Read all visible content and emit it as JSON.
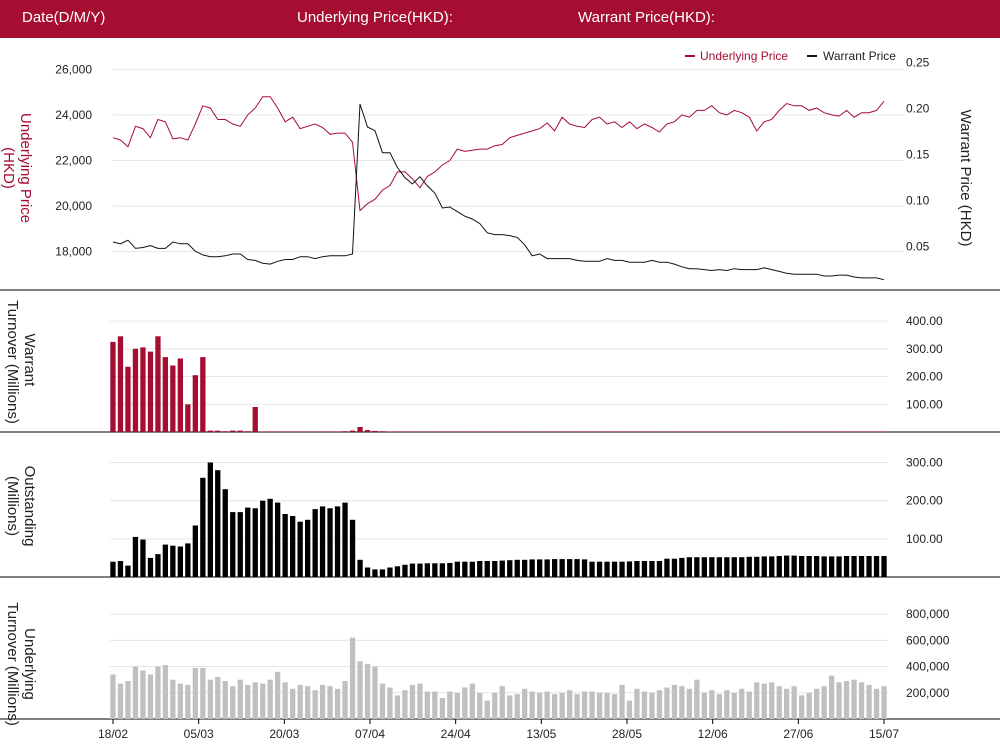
{
  "header": {
    "date_label": "Date(D/M/Y)",
    "underlying_label": "Underlying Price(HKD):",
    "warrant_label": "Warrant Price(HKD):"
  },
  "colors": {
    "brand": "#a50e31",
    "underlying": "#a50e31",
    "warrant": "#111111",
    "turnover_bar": "#a50e31",
    "outstanding_bar": "#000000",
    "underlying_turnover_bar": "#c0c0c0",
    "grid": "#e6e6e6"
  },
  "chart_data": [
    {
      "type": "line",
      "legend": {
        "placement": "top-right",
        "items": [
          "Underlying Price",
          "Warrant Price"
        ]
      },
      "ylabel_left": "Underlying Price (HKD)",
      "ylabel_right": "Warrant  Price (HKD)",
      "left_ticks": [
        "26,000",
        "24,000",
        "22,000",
        "20,000",
        "18,000"
      ],
      "right_ticks": [
        "0.25",
        "0.20",
        "0.15",
        "0.10",
        "0.05"
      ],
      "ylim_left": [
        16400,
        26500
      ],
      "ylim_right": [
        0.005,
        0.255
      ],
      "grid": true,
      "series": [
        {
          "name": "Underlying Price",
          "axis": "left",
          "values": [
            23000,
            22900,
            22600,
            23500,
            23400,
            23000,
            23800,
            23700,
            22950,
            23000,
            22900,
            23600,
            24400,
            24300,
            23800,
            23800,
            23600,
            23500,
            24000,
            24300,
            24800,
            24800,
            24300,
            23700,
            23900,
            23400,
            23500,
            23600,
            23450,
            23150,
            23200,
            23200,
            22800,
            19800,
            20100,
            20300,
            20700,
            20900,
            21500,
            21500,
            21200,
            20800,
            21300,
            21500,
            21800,
            22000,
            22500,
            22400,
            22450,
            22500,
            22500,
            22650,
            22700,
            23000,
            23100,
            23200,
            23300,
            23400,
            23650,
            23300,
            23900,
            23600,
            23500,
            23450,
            23800,
            23900,
            23600,
            23700,
            23450,
            23700,
            23400,
            23600,
            23450,
            23250,
            23600,
            23700,
            24000,
            23900,
            24200,
            24200,
            24400,
            24100,
            24000,
            24200,
            24100,
            23900,
            23300,
            23700,
            23800,
            24200,
            24500,
            24400,
            24400,
            24200,
            24300,
            24100,
            24000,
            23950,
            24200,
            23900,
            24100,
            24100,
            24200,
            24600
          ]
        },
        {
          "name": "Warrant Price",
          "axis": "right",
          "values": [
            0.055,
            0.053,
            0.057,
            0.048,
            0.049,
            0.051,
            0.048,
            0.048,
            0.055,
            0.053,
            0.053,
            0.045,
            0.041,
            0.039,
            0.039,
            0.04,
            0.042,
            0.042,
            0.036,
            0.035,
            0.032,
            0.031,
            0.034,
            0.036,
            0.036,
            0.039,
            0.039,
            0.037,
            0.039,
            0.04,
            0.04,
            0.04,
            0.042,
            0.205,
            0.18,
            0.176,
            0.152,
            0.152,
            0.136,
            0.125,
            0.118,
            0.126,
            0.116,
            0.108,
            0.092,
            0.093,
            0.088,
            0.083,
            0.08,
            0.075,
            0.065,
            0.063,
            0.063,
            0.062,
            0.06,
            0.052,
            0.04,
            0.042,
            0.037,
            0.037,
            0.037,
            0.037,
            0.035,
            0.034,
            0.034,
            0.034,
            0.037,
            0.035,
            0.035,
            0.033,
            0.033,
            0.033,
            0.035,
            0.033,
            0.033,
            0.031,
            0.028,
            0.026,
            0.026,
            0.025,
            0.024,
            0.025,
            0.024,
            0.026,
            0.025,
            0.025,
            0.025,
            0.027,
            0.025,
            0.023,
            0.021,
            0.02,
            0.02,
            0.02,
            0.02,
            0.018,
            0.018,
            0.019,
            0.019,
            0.017,
            0.016,
            0.016,
            0.016,
            0.014
          ]
        }
      ]
    },
    {
      "type": "bar",
      "ylabel": "Warrant  Turnover (Millions)",
      "right_ticks": [
        "400.00",
        "300.00",
        "200.00",
        "100.00"
      ],
      "ylim": [
        0,
        440
      ],
      "series": [
        {
          "name": "Warrant Turnover",
          "values": [
            325,
            345,
            235,
            300,
            305,
            290,
            345,
            270,
            240,
            265,
            100,
            205,
            270,
            5,
            5,
            3,
            5,
            5,
            3,
            90,
            2,
            2,
            2,
            2,
            2,
            2,
            2,
            2,
            2,
            2,
            2,
            3,
            5,
            18,
            7,
            4,
            3,
            2,
            2,
            2,
            2,
            2,
            2,
            2,
            2,
            2,
            2,
            2,
            2,
            2,
            2,
            2,
            2,
            2,
            2,
            2,
            2,
            2,
            2,
            2,
            2,
            2,
            2,
            2,
            2,
            2,
            2,
            2,
            2,
            2,
            2,
            2,
            2,
            2,
            2,
            2,
            2,
            2,
            2,
            2,
            2,
            2,
            2,
            2,
            2,
            2,
            2,
            2,
            2,
            2,
            2,
            2,
            2,
            2,
            2,
            2,
            2,
            2,
            2,
            2,
            2,
            2,
            2,
            2
          ]
        }
      ]
    },
    {
      "type": "bar",
      "ylabel": "Outstanding (Millions)",
      "right_ticks": [
        "300.00",
        "200.00",
        "100.00"
      ],
      "ylim": [
        0,
        325
      ],
      "series": [
        {
          "name": "Outstanding",
          "values": [
            40,
            42,
            30,
            105,
            98,
            50,
            60,
            85,
            82,
            80,
            88,
            135,
            260,
            300,
            280,
            230,
            170,
            170,
            182,
            180,
            200,
            205,
            195,
            165,
            160,
            145,
            150,
            178,
            185,
            180,
            185,
            195,
            150,
            45,
            25,
            20,
            20,
            25,
            28,
            32,
            35,
            35,
            36,
            36,
            36,
            37,
            40,
            40,
            40,
            42,
            42,
            42,
            43,
            44,
            45,
            45,
            46,
            46,
            46,
            47,
            47,
            47,
            47,
            46,
            40,
            40,
            40,
            40,
            40,
            41,
            42,
            42,
            42,
            42,
            48,
            48,
            50,
            52,
            52,
            52,
            52,
            52,
            52,
            52,
            52,
            53,
            53,
            54,
            54,
            55,
            56,
            56,
            55,
            55,
            55,
            54,
            54,
            54,
            55,
            55,
            55,
            55,
            55,
            55
          ]
        }
      ]
    },
    {
      "type": "bar",
      "ylabel": "Underlying Turnover (Millions)",
      "right_ticks": [
        "800,000",
        "600,000",
        "400,000",
        "200,000"
      ],
      "ylim": [
        0,
        900000
      ],
      "x_ticks": [
        "18/02",
        "05/03",
        "20/03",
        "07/04",
        "24/04",
        "13/05",
        "28/05",
        "12/06",
        "27/06",
        "15/07"
      ],
      "series": [
        {
          "name": "Underlying Turnover",
          "values": [
            340000,
            270000,
            290000,
            400000,
            370000,
            340000,
            400000,
            410000,
            300000,
            270000,
            260000,
            390000,
            390000,
            300000,
            320000,
            290000,
            250000,
            300000,
            260000,
            280000,
            270000,
            300000,
            360000,
            280000,
            230000,
            260000,
            250000,
            220000,
            260000,
            250000,
            230000,
            290000,
            620000,
            440000,
            420000,
            400000,
            270000,
            240000,
            180000,
            220000,
            260000,
            270000,
            210000,
            210000,
            160000,
            210000,
            200000,
            240000,
            270000,
            200000,
            140000,
            200000,
            250000,
            180000,
            190000,
            230000,
            210000,
            200000,
            210000,
            190000,
            200000,
            220000,
            190000,
            210000,
            210000,
            200000,
            200000,
            190000,
            260000,
            140000,
            230000,
            210000,
            200000,
            220000,
            240000,
            260000,
            250000,
            230000,
            300000,
            200000,
            220000,
            190000,
            220000,
            200000,
            230000,
            210000,
            280000,
            270000,
            280000,
            250000,
            230000,
            250000,
            180000,
            200000,
            230000,
            250000,
            330000,
            280000,
            290000,
            300000,
            280000,
            260000,
            230000,
            250000
          ]
        }
      ]
    }
  ]
}
